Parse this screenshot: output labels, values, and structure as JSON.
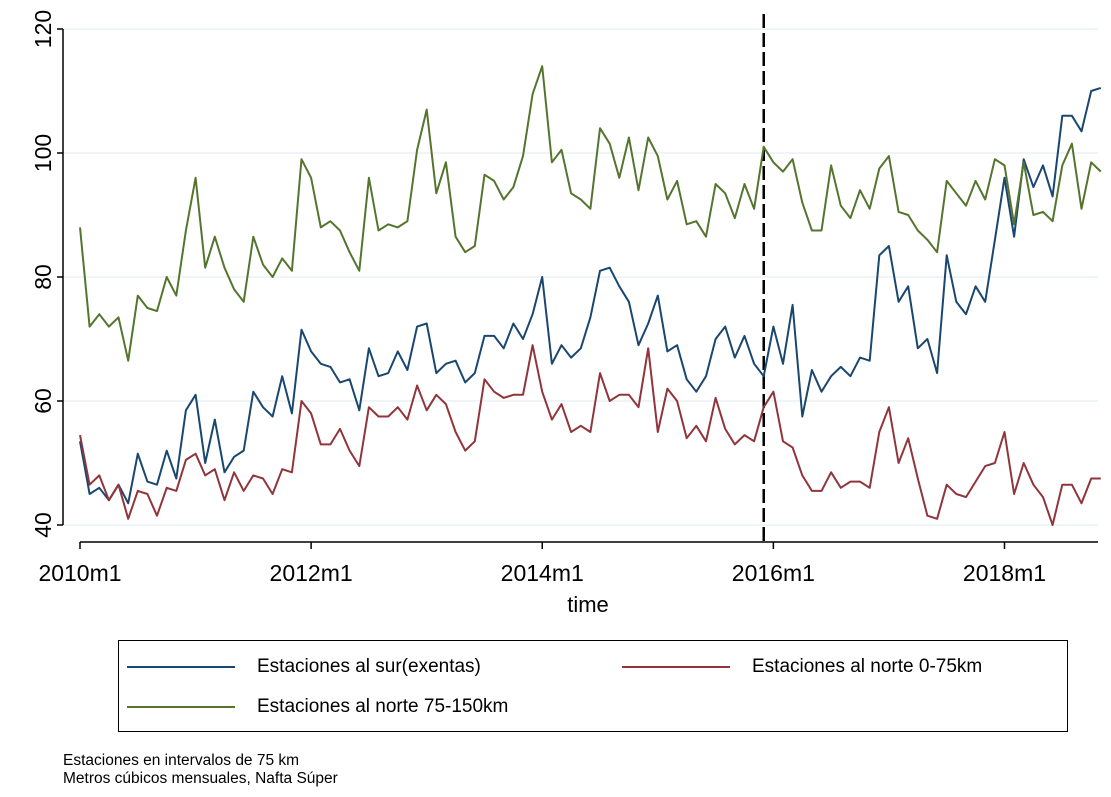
{
  "chart_data": {
    "type": "line",
    "xlabel": "time",
    "ylabel": "",
    "ylim": [
      40,
      120
    ],
    "yticks": [
      40,
      60,
      80,
      100,
      120
    ],
    "xticks": [
      {
        "label": "2010m1",
        "index": 0
      },
      {
        "label": "2012m1",
        "index": 24
      },
      {
        "label": "2014m1",
        "index": 48
      },
      {
        "label": "2016m1",
        "index": 72
      },
      {
        "label": "2018m1",
        "index": 96
      }
    ],
    "x_start": "2010m1",
    "x_end": "2018m12",
    "reference_line": {
      "x": "2015m12",
      "style": "dashed"
    },
    "grid": true,
    "series": [
      {
        "name": "Estaciones al sur(exentas)",
        "color": "#1a476f",
        "values": [
          53.5,
          45.0,
          46.0,
          44.0,
          46.5,
          43.5,
          51.5,
          47.0,
          46.5,
          52.0,
          47.5,
          58.5,
          61.0,
          50.0,
          57.0,
          48.5,
          51.0,
          52.0,
          61.5,
          59.0,
          57.5,
          64.0,
          58.0,
          71.5,
          68.0,
          66.0,
          65.5,
          63.0,
          63.5,
          58.5,
          68.5,
          64.0,
          64.5,
          68.0,
          65.0,
          72.0,
          72.5,
          64.5,
          66.0,
          66.5,
          63.0,
          64.5,
          70.5,
          70.5,
          68.5,
          72.5,
          70.0,
          74.0,
          80.0,
          66.0,
          69.0,
          67.0,
          68.5,
          73.5,
          81.0,
          81.5,
          78.5,
          76.0,
          69.0,
          72.5,
          77.0,
          68.0,
          69.0,
          63.5,
          61.5,
          64.0,
          70.0,
          72.0,
          67.0,
          70.5,
          66.0,
          64.0,
          72.0,
          66.0,
          75.5,
          57.5,
          65.0,
          61.5,
          64.0,
          65.5,
          64.0,
          67.0,
          66.5,
          83.5,
          85.0,
          76.0,
          78.5,
          68.5,
          70.0,
          64.5,
          83.5,
          76.0,
          74.0,
          78.5,
          76.0,
          86.0,
          96.0,
          86.5,
          99.0,
          94.5,
          98.0,
          93.0,
          106.0,
          106.0,
          103.5,
          110.0,
          110.5
        ]
      },
      {
        "name": "Estaciones al norte 0-75km",
        "color": "#90353b",
        "values": [
          54.5,
          46.5,
          48.0,
          44.0,
          46.5,
          41.0,
          45.5,
          45.0,
          41.5,
          46.0,
          45.5,
          50.5,
          51.5,
          48.0,
          49.0,
          44.0,
          48.5,
          45.5,
          48.0,
          47.5,
          45.0,
          49.0,
          48.5,
          60.0,
          58.0,
          53.0,
          53.0,
          55.5,
          52.0,
          49.5,
          59.0,
          57.5,
          57.5,
          59.0,
          57.0,
          62.5,
          58.5,
          61.0,
          59.5,
          55.0,
          52.0,
          53.5,
          63.5,
          61.5,
          60.5,
          61.0,
          61.0,
          69.0,
          61.5,
          57.0,
          59.5,
          55.0,
          56.0,
          55.0,
          64.5,
          60.0,
          61.0,
          61.0,
          59.0,
          68.5,
          55.0,
          62.0,
          60.0,
          54.0,
          56.0,
          53.5,
          60.5,
          55.5,
          53.0,
          54.5,
          53.5,
          59.0,
          61.5,
          53.5,
          52.5,
          48.0,
          45.5,
          45.5,
          48.5,
          46.0,
          47.0,
          47.0,
          46.0,
          55.0,
          59.0,
          50.0,
          54.0,
          47.5,
          41.5,
          41.0,
          46.5,
          45.0,
          44.5,
          47.0,
          49.5,
          50.0,
          55.0,
          45.0,
          50.0,
          46.5,
          44.5,
          40.0,
          46.5,
          46.5,
          43.5,
          47.5,
          47.5
        ]
      },
      {
        "name": "Estaciones al norte 75-150km",
        "color": "#55752f",
        "values": [
          88.0,
          72.0,
          74.0,
          72.0,
          73.5,
          66.5,
          77.0,
          75.0,
          74.5,
          80.0,
          77.0,
          87.5,
          96.0,
          81.5,
          86.5,
          81.5,
          78.0,
          76.0,
          86.5,
          82.0,
          80.0,
          83.0,
          81.0,
          99.0,
          96.0,
          88.0,
          89.0,
          87.5,
          84.0,
          81.0,
          96.0,
          87.5,
          88.5,
          88.0,
          89.0,
          100.5,
          107.0,
          93.5,
          98.5,
          86.5,
          84.0,
          85.0,
          96.5,
          95.5,
          92.5,
          94.5,
          99.5,
          109.5,
          114.0,
          98.5,
          100.5,
          93.5,
          92.5,
          91.0,
          104.0,
          101.5,
          96.0,
          102.5,
          94.0,
          102.5,
          99.5,
          92.5,
          95.5,
          88.5,
          89.0,
          86.5,
          95.0,
          93.5,
          89.5,
          95.0,
          91.0,
          101.0,
          98.5,
          97.0,
          99.0,
          92.0,
          87.5,
          87.5,
          98.0,
          91.5,
          89.5,
          94.0,
          91.0,
          97.5,
          99.5,
          90.5,
          90.0,
          87.5,
          86.0,
          84.0,
          95.5,
          93.5,
          91.5,
          95.5,
          92.5,
          99.0,
          98.0,
          88.5,
          98.5,
          90.0,
          90.5,
          89.0,
          98.0,
          101.5,
          91.0,
          98.5,
          97.0
        ]
      }
    ],
    "legend": {
      "placement": "bottom",
      "entries": [
        "Estaciones al sur(exentas)",
        "Estaciones al norte 0-75km",
        "Estaciones al norte 75-150km"
      ]
    },
    "notes": [
      "Estaciones en intervalos de 75 km",
      "Metros cúbicos mensuales, Nafta Súper"
    ]
  }
}
